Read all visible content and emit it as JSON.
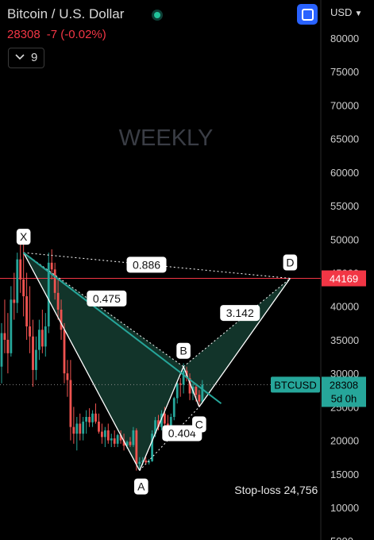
{
  "header": {
    "title": "Bitcoin / U.S. Dollar",
    "price": "28308",
    "change": "-7 (-0.02%)",
    "indicator_count": "9",
    "currency": "USD"
  },
  "chart_data": {
    "type": "candlestick",
    "timeframe_label": "WEEKLY",
    "y_axis": {
      "ticks": [
        80000,
        75000,
        70000,
        65000,
        60000,
        55000,
        50000,
        45000,
        40000,
        35000,
        30000,
        25000,
        20000,
        15000,
        10000,
        5000
      ],
      "ylim": [
        4000,
        85000
      ]
    },
    "candles": [
      [
        31000,
        37500,
        28500,
        36000
      ],
      [
        36000,
        41000,
        33000,
        35000
      ],
      [
        35000,
        39000,
        30000,
        33000
      ],
      [
        33000,
        43000,
        32500,
        41000
      ],
      [
        41000,
        45000,
        38000,
        40500
      ],
      [
        40500,
        48000,
        39000,
        47000
      ],
      [
        47000,
        49500,
        42000,
        44000
      ],
      [
        44000,
        50000,
        38500,
        41500
      ],
      [
        41500,
        45000,
        35000,
        37000
      ],
      [
        37000,
        43000,
        33000,
        35500
      ],
      [
        35500,
        38000,
        28000,
        30500
      ],
      [
        30500,
        35500,
        29000,
        33500
      ],
      [
        33500,
        38000,
        32000,
        36500
      ],
      [
        36500,
        39500,
        33000,
        34000
      ],
      [
        34000,
        39000,
        32500,
        37000
      ],
      [
        37000,
        48000,
        36000,
        46500
      ],
      [
        46500,
        48500,
        44000,
        45500
      ],
      [
        45500,
        46500,
        41000,
        42000
      ],
      [
        42000,
        44000,
        38000,
        39500
      ],
      [
        39500,
        41000,
        35000,
        36500
      ],
      [
        36500,
        37500,
        28500,
        30000
      ],
      [
        30000,
        32000,
        26500,
        29000
      ],
      [
        29000,
        32000,
        20000,
        22000
      ],
      [
        22000,
        25000,
        19500,
        21000
      ],
      [
        21000,
        23500,
        18500,
        22500
      ],
      [
        22500,
        24000,
        20000,
        21000
      ],
      [
        21000,
        23500,
        20000,
        22800
      ],
      [
        22800,
        24500,
        21000,
        23500
      ],
      [
        23500,
        24800,
        22000,
        22700
      ],
      [
        22700,
        24500,
        22000,
        24000
      ],
      [
        24000,
        25500,
        22500,
        22800
      ],
      [
        22800,
        24000,
        21000,
        21300
      ],
      [
        21300,
        22500,
        19500,
        20500
      ],
      [
        20500,
        22000,
        19000,
        21500
      ],
      [
        21500,
        22500,
        19500,
        20000
      ],
      [
        20000,
        21000,
        19000,
        20300
      ],
      [
        20300,
        21500,
        19000,
        19500
      ],
      [
        19500,
        21000,
        19000,
        20800
      ],
      [
        20800,
        21500,
        19500,
        20000
      ],
      [
        20000,
        21000,
        18500,
        19200
      ],
      [
        19200,
        20000,
        18800,
        19800
      ],
      [
        19800,
        20500,
        19000,
        19300
      ],
      [
        19300,
        22000,
        19000,
        21500
      ],
      [
        21500,
        21800,
        15500,
        16500
      ],
      [
        16500,
        17500,
        15500,
        16800
      ],
      [
        16800,
        17500,
        16300,
        17000
      ],
      [
        17000,
        17500,
        16500,
        16700
      ],
      [
        16700,
        17200,
        16400,
        16900
      ],
      [
        16900,
        21500,
        16800,
        21000
      ],
      [
        21000,
        23500,
        20500,
        23000
      ],
      [
        23000,
        23800,
        21500,
        22000
      ],
      [
        22000,
        24500,
        21500,
        24000
      ],
      [
        24000,
        25000,
        21500,
        22500
      ],
      [
        22500,
        23800,
        21000,
        22000
      ],
      [
        22000,
        24000,
        21500,
        23500
      ],
      [
        23500,
        26500,
        23000,
        26300
      ],
      [
        26300,
        28800,
        25500,
        28500
      ],
      [
        28500,
        29300,
        26500,
        28300
      ],
      [
        28300,
        31500,
        27000,
        30400
      ],
      [
        30400,
        31000,
        28800,
        29300
      ],
      [
        29300,
        30000,
        26000,
        27000
      ],
      [
        27000,
        28500,
        26000,
        28000
      ],
      [
        28000,
        28500,
        25800,
        26800
      ],
      [
        26800,
        27500,
        25000,
        25800
      ],
      [
        25800,
        29000,
        25500,
        28308
      ]
    ],
    "harmonic_pattern": {
      "points": {
        "X": {
          "index": 7,
          "price": 48000,
          "label": "X"
        },
        "A": {
          "index": 44,
          "price": 15500,
          "label": "A"
        },
        "B": {
          "index": 58,
          "price": 31000,
          "label": "B"
        },
        "C": {
          "index": 63,
          "price": 25000,
          "label": "C"
        },
        "D": {
          "index": 92,
          "price": 44169,
          "label": "D"
        }
      },
      "ratios": [
        {
          "between": [
            "X",
            "D"
          ],
          "value": "0.886"
        },
        {
          "between": [
            "X",
            "B"
          ],
          "value": "0.475"
        },
        {
          "between": [
            "B",
            "D"
          ],
          "value": "3.142"
        },
        {
          "between": [
            "A",
            "C"
          ],
          "value": "0.404"
        }
      ]
    },
    "trendline": {
      "from": {
        "index": 7,
        "price": 48000
      },
      "to": {
        "index": 70,
        "price": 25500
      }
    },
    "horizontal_line": {
      "price": 44169,
      "label": "44169"
    },
    "current_price_label": {
      "symbol": "BTCUSD",
      "price": "28308",
      "countdown": "5d 0h"
    },
    "annotations": [
      {
        "text": "Stop-loss 24,756",
        "index": 75,
        "price": 12600
      }
    ],
    "colors": {
      "up": "#26a69a",
      "down": "#ef5350",
      "pattern_fill": "#143a2f",
      "pattern_line": "#ffffff",
      "trendline": "#26a69a",
      "price_line": "#f23645",
      "current_price": "#26a69a"
    }
  }
}
